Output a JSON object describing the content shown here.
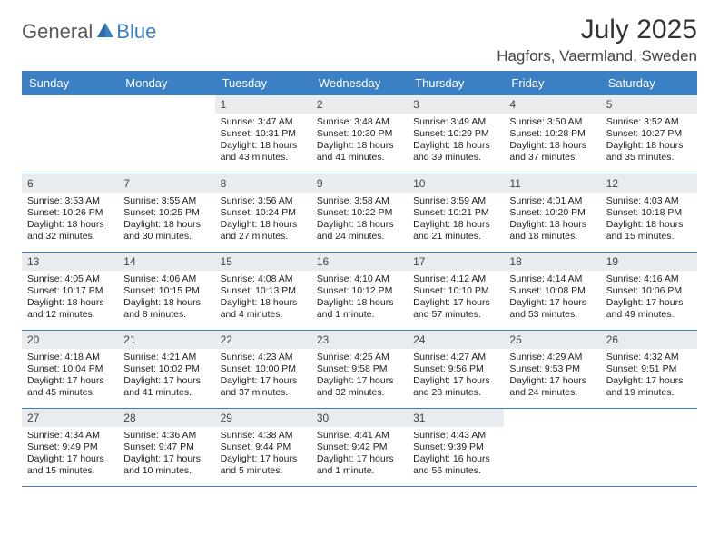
{
  "brand": {
    "part1": "General",
    "part2": "Blue"
  },
  "title": "July 2025",
  "location": "Hagfors, Vaermland, Sweden",
  "colors": {
    "header_bg": "#3b7fc4",
    "header_text": "#ffffff",
    "daynum_bg": "#e9ecef",
    "row_border": "#3b7fc4",
    "brand_gray": "#5a5a5a",
    "brand_blue": "#3b7fc4"
  },
  "day_headers": [
    "Sunday",
    "Monday",
    "Tuesday",
    "Wednesday",
    "Thursday",
    "Friday",
    "Saturday"
  ],
  "weeks": [
    [
      null,
      null,
      {
        "n": "1",
        "sr": "3:47 AM",
        "ss": "10:31 PM",
        "dl": "18 hours and 43 minutes."
      },
      {
        "n": "2",
        "sr": "3:48 AM",
        "ss": "10:30 PM",
        "dl": "18 hours and 41 minutes."
      },
      {
        "n": "3",
        "sr": "3:49 AM",
        "ss": "10:29 PM",
        "dl": "18 hours and 39 minutes."
      },
      {
        "n": "4",
        "sr": "3:50 AM",
        "ss": "10:28 PM",
        "dl": "18 hours and 37 minutes."
      },
      {
        "n": "5",
        "sr": "3:52 AM",
        "ss": "10:27 PM",
        "dl": "18 hours and 35 minutes."
      }
    ],
    [
      {
        "n": "6",
        "sr": "3:53 AM",
        "ss": "10:26 PM",
        "dl": "18 hours and 32 minutes."
      },
      {
        "n": "7",
        "sr": "3:55 AM",
        "ss": "10:25 PM",
        "dl": "18 hours and 30 minutes."
      },
      {
        "n": "8",
        "sr": "3:56 AM",
        "ss": "10:24 PM",
        "dl": "18 hours and 27 minutes."
      },
      {
        "n": "9",
        "sr": "3:58 AM",
        "ss": "10:22 PM",
        "dl": "18 hours and 24 minutes."
      },
      {
        "n": "10",
        "sr": "3:59 AM",
        "ss": "10:21 PM",
        "dl": "18 hours and 21 minutes."
      },
      {
        "n": "11",
        "sr": "4:01 AM",
        "ss": "10:20 PM",
        "dl": "18 hours and 18 minutes."
      },
      {
        "n": "12",
        "sr": "4:03 AM",
        "ss": "10:18 PM",
        "dl": "18 hours and 15 minutes."
      }
    ],
    [
      {
        "n": "13",
        "sr": "4:05 AM",
        "ss": "10:17 PM",
        "dl": "18 hours and 12 minutes."
      },
      {
        "n": "14",
        "sr": "4:06 AM",
        "ss": "10:15 PM",
        "dl": "18 hours and 8 minutes."
      },
      {
        "n": "15",
        "sr": "4:08 AM",
        "ss": "10:13 PM",
        "dl": "18 hours and 4 minutes."
      },
      {
        "n": "16",
        "sr": "4:10 AM",
        "ss": "10:12 PM",
        "dl": "18 hours and 1 minute."
      },
      {
        "n": "17",
        "sr": "4:12 AM",
        "ss": "10:10 PM",
        "dl": "17 hours and 57 minutes."
      },
      {
        "n": "18",
        "sr": "4:14 AM",
        "ss": "10:08 PM",
        "dl": "17 hours and 53 minutes."
      },
      {
        "n": "19",
        "sr": "4:16 AM",
        "ss": "10:06 PM",
        "dl": "17 hours and 49 minutes."
      }
    ],
    [
      {
        "n": "20",
        "sr": "4:18 AM",
        "ss": "10:04 PM",
        "dl": "17 hours and 45 minutes."
      },
      {
        "n": "21",
        "sr": "4:21 AM",
        "ss": "10:02 PM",
        "dl": "17 hours and 41 minutes."
      },
      {
        "n": "22",
        "sr": "4:23 AM",
        "ss": "10:00 PM",
        "dl": "17 hours and 37 minutes."
      },
      {
        "n": "23",
        "sr": "4:25 AM",
        "ss": "9:58 PM",
        "dl": "17 hours and 32 minutes."
      },
      {
        "n": "24",
        "sr": "4:27 AM",
        "ss": "9:56 PM",
        "dl": "17 hours and 28 minutes."
      },
      {
        "n": "25",
        "sr": "4:29 AM",
        "ss": "9:53 PM",
        "dl": "17 hours and 24 minutes."
      },
      {
        "n": "26",
        "sr": "4:32 AM",
        "ss": "9:51 PM",
        "dl": "17 hours and 19 minutes."
      }
    ],
    [
      {
        "n": "27",
        "sr": "4:34 AM",
        "ss": "9:49 PM",
        "dl": "17 hours and 15 minutes."
      },
      {
        "n": "28",
        "sr": "4:36 AM",
        "ss": "9:47 PM",
        "dl": "17 hours and 10 minutes."
      },
      {
        "n": "29",
        "sr": "4:38 AM",
        "ss": "9:44 PM",
        "dl": "17 hours and 5 minutes."
      },
      {
        "n": "30",
        "sr": "4:41 AM",
        "ss": "9:42 PM",
        "dl": "17 hours and 1 minute."
      },
      {
        "n": "31",
        "sr": "4:43 AM",
        "ss": "9:39 PM",
        "dl": "16 hours and 56 minutes."
      },
      null,
      null
    ]
  ],
  "labels": {
    "sunrise": "Sunrise: ",
    "sunset": "Sunset: ",
    "daylight": "Daylight: "
  }
}
